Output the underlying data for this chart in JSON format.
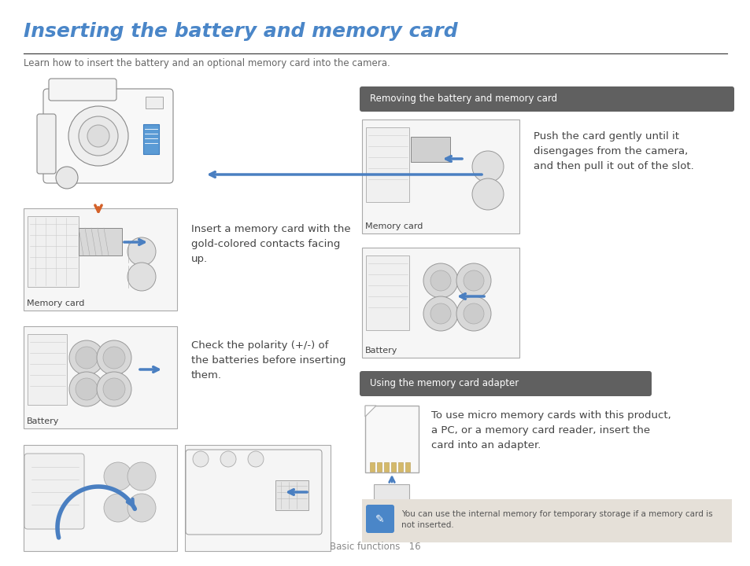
{
  "title": "Inserting the battery and memory card",
  "subtitle": "Learn how to insert the battery and an optional memory card into the camera.",
  "title_color": "#4a86c8",
  "title_fontsize": 18,
  "subtitle_fontsize": 8.5,
  "body_fontsize": 9.5,
  "label_fontsize": 8,
  "bg_color": "#ffffff",
  "text_color": "#444444",
  "section_header_bg": "#606060",
  "section_header_color": "#ffffff",
  "note_bg": "#e5e0d8",
  "text1": "Insert a memory card with the\ngold-colored contacts facing\nup.",
  "text2": "Check the polarity (+/-) of\nthe batteries before inserting\nthem.",
  "remove_header": "Removing the battery and memory card",
  "remove_text": "Push the card gently until it\ndisengages from the camera,\nand then pull it out of the slot.",
  "adapter_header": "Using the memory card adapter",
  "adapter_text": "To use micro memory cards with this product,\na PC, or a memory card reader, insert the\ncard into an adapter.",
  "note_text": "You can use the internal memory for temporary storage if a memory card is\nnot inserted.",
  "footer": "Basic functions   16",
  "memory_card_label": "Memory card",
  "battery_label": "Battery",
  "memory_card_label2": "Memory card",
  "battery_label2": "Battery",
  "arrow_orange": "#d4622a",
  "arrow_blue": "#4a7fc1",
  "line_color": "#888888",
  "box_line_color": "#bbbbbb",
  "box_fill": "#f8f8f8"
}
